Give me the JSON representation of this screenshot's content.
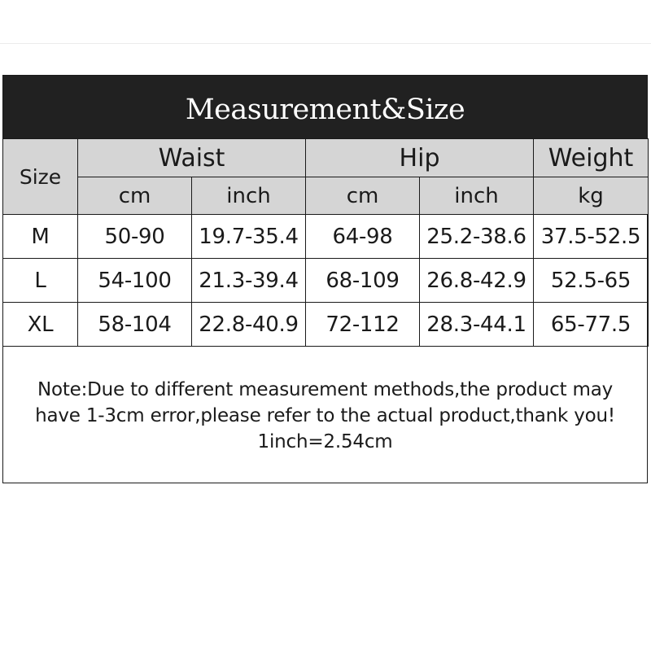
{
  "title": "Measurement&Size",
  "header": {
    "size": "Size",
    "groups": [
      "Waist",
      "Hip",
      "Weight"
    ],
    "units": [
      "cm",
      "inch",
      "cm",
      "inch",
      "kg"
    ]
  },
  "rows": [
    [
      "M",
      "50-90",
      "19.7-35.4",
      "64-98",
      "25.2-38.6",
      "37.5-52.5"
    ],
    [
      "L",
      "54-100",
      "21.3-39.4",
      "68-109",
      "26.8-42.9",
      "52.5-65"
    ],
    [
      "XL",
      "58-104",
      "22.8-40.9",
      "72-112",
      "28.3-44.1",
      "65-77.5"
    ]
  ],
  "note": {
    "line1": "Note:Due to different measurement methods,the product may",
    "line2": "have 1-3cm error,please refer to the actual product,thank you!",
    "line3": "1inch=2.54cm"
  },
  "colors": {
    "title_background": "#212121",
    "header_background": "#d5d5d5",
    "border": "#1a1a1a"
  }
}
